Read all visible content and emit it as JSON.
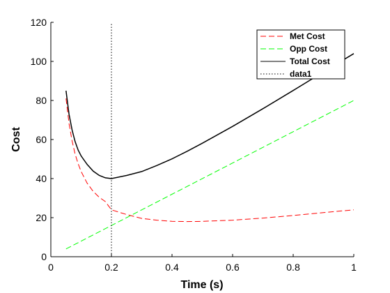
{
  "chart_data": {
    "type": "line",
    "title": "",
    "xlabel": "Time (s)",
    "ylabel": "Cost",
    "xlim": [
      0,
      1
    ],
    "ylim": [
      0,
      120
    ],
    "xticks": [
      0,
      0.2,
      0.4,
      0.6,
      0.8,
      1
    ],
    "xtick_labels": [
      "0",
      "0.2",
      "0.4",
      "0.6",
      "0.8",
      "1"
    ],
    "yticks": [
      0,
      20,
      40,
      60,
      80,
      100,
      120
    ],
    "ytick_labels": [
      "0",
      "20",
      "40",
      "60",
      "80",
      "100",
      "120"
    ],
    "grid": false,
    "legend_position": "top-right",
    "series": [
      {
        "name": "Met Cost",
        "color": "#ff0000",
        "style": "dashed",
        "x": [
          0.05,
          0.06,
          0.07,
          0.08,
          0.09,
          0.1,
          0.12,
          0.14,
          0.16,
          0.18,
          0.2,
          0.25,
          0.3,
          0.35,
          0.4,
          0.45,
          0.5,
          0.6,
          0.7,
          0.8,
          0.9,
          1.0
        ],
        "y": [
          81,
          68.2,
          59.3,
          52.6,
          47.6,
          43.6,
          37.6,
          33.4,
          30.4,
          28.2,
          24,
          21.6,
          19.6,
          18.7,
          18.1,
          18,
          18.1,
          18.7,
          19.8,
          21.1,
          22.6,
          24
        ]
      },
      {
        "name": "Opp Cost",
        "color": "#00ff00",
        "style": "dashed",
        "x": [
          0.05,
          1.0
        ],
        "y": [
          4,
          80
        ]
      },
      {
        "name": "Total Cost",
        "color": "#000000",
        "style": "solid",
        "x": [
          0.05,
          0.06,
          0.07,
          0.08,
          0.09,
          0.1,
          0.12,
          0.14,
          0.16,
          0.18,
          0.2,
          0.25,
          0.3,
          0.35,
          0.4,
          0.45,
          0.5,
          0.6,
          0.7,
          0.8,
          0.9,
          1.0
        ],
        "y": [
          85,
          73,
          64.9,
          59,
          54.6,
          51.6,
          47.2,
          43.8,
          41.6,
          40.4,
          40,
          41.6,
          43.6,
          46.7,
          50.1,
          54,
          58.1,
          66.7,
          75.8,
          85.1,
          94.6,
          104
        ]
      },
      {
        "name": "data1",
        "color": "#000000",
        "style": "dotted",
        "x": [
          0.2,
          0.2
        ],
        "y": [
          0,
          120
        ]
      }
    ]
  }
}
